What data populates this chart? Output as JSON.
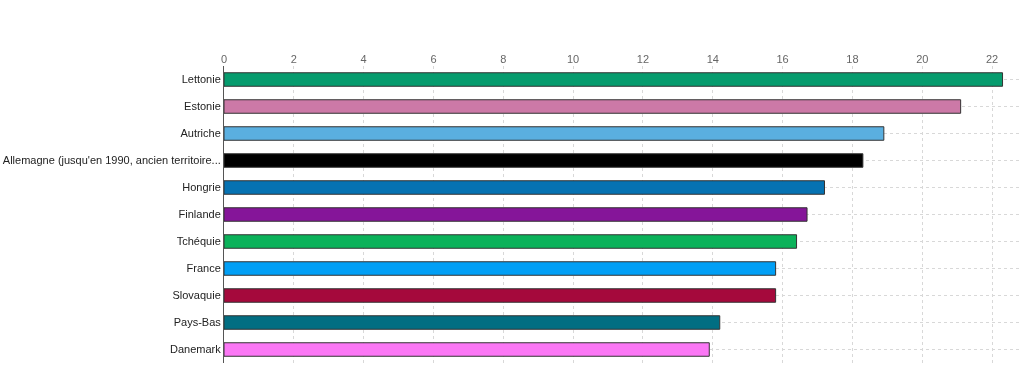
{
  "chart_data": {
    "type": "bar",
    "orientation": "horizontal",
    "categories": [
      "Lettonie",
      "Estonie",
      "Autriche",
      "Allemagne (jusqu'en 1990, ancien territoire...",
      "Hongrie",
      "Finlande",
      "Tchéquie",
      "France",
      "Slovaquie",
      "Pays-Bas",
      "Danemark"
    ],
    "values": [
      22.3,
      21.1,
      18.9,
      18.3,
      17.2,
      16.7,
      16.4,
      15.8,
      15.8,
      14.2,
      13.9
    ],
    "colors": [
      "#069c6e",
      "#cc79a7",
      "#5aafe0",
      "#000000",
      "#0672b2",
      "#851599",
      "#0bb25a",
      "#019ff5",
      "#a5093c",
      "#016e82",
      "#fb77f5"
    ],
    "xlim": [
      0,
      22.8
    ],
    "xticks": [
      0,
      2,
      4,
      6,
      8,
      10,
      12,
      14,
      16,
      18,
      20,
      22
    ],
    "grid": true
  }
}
